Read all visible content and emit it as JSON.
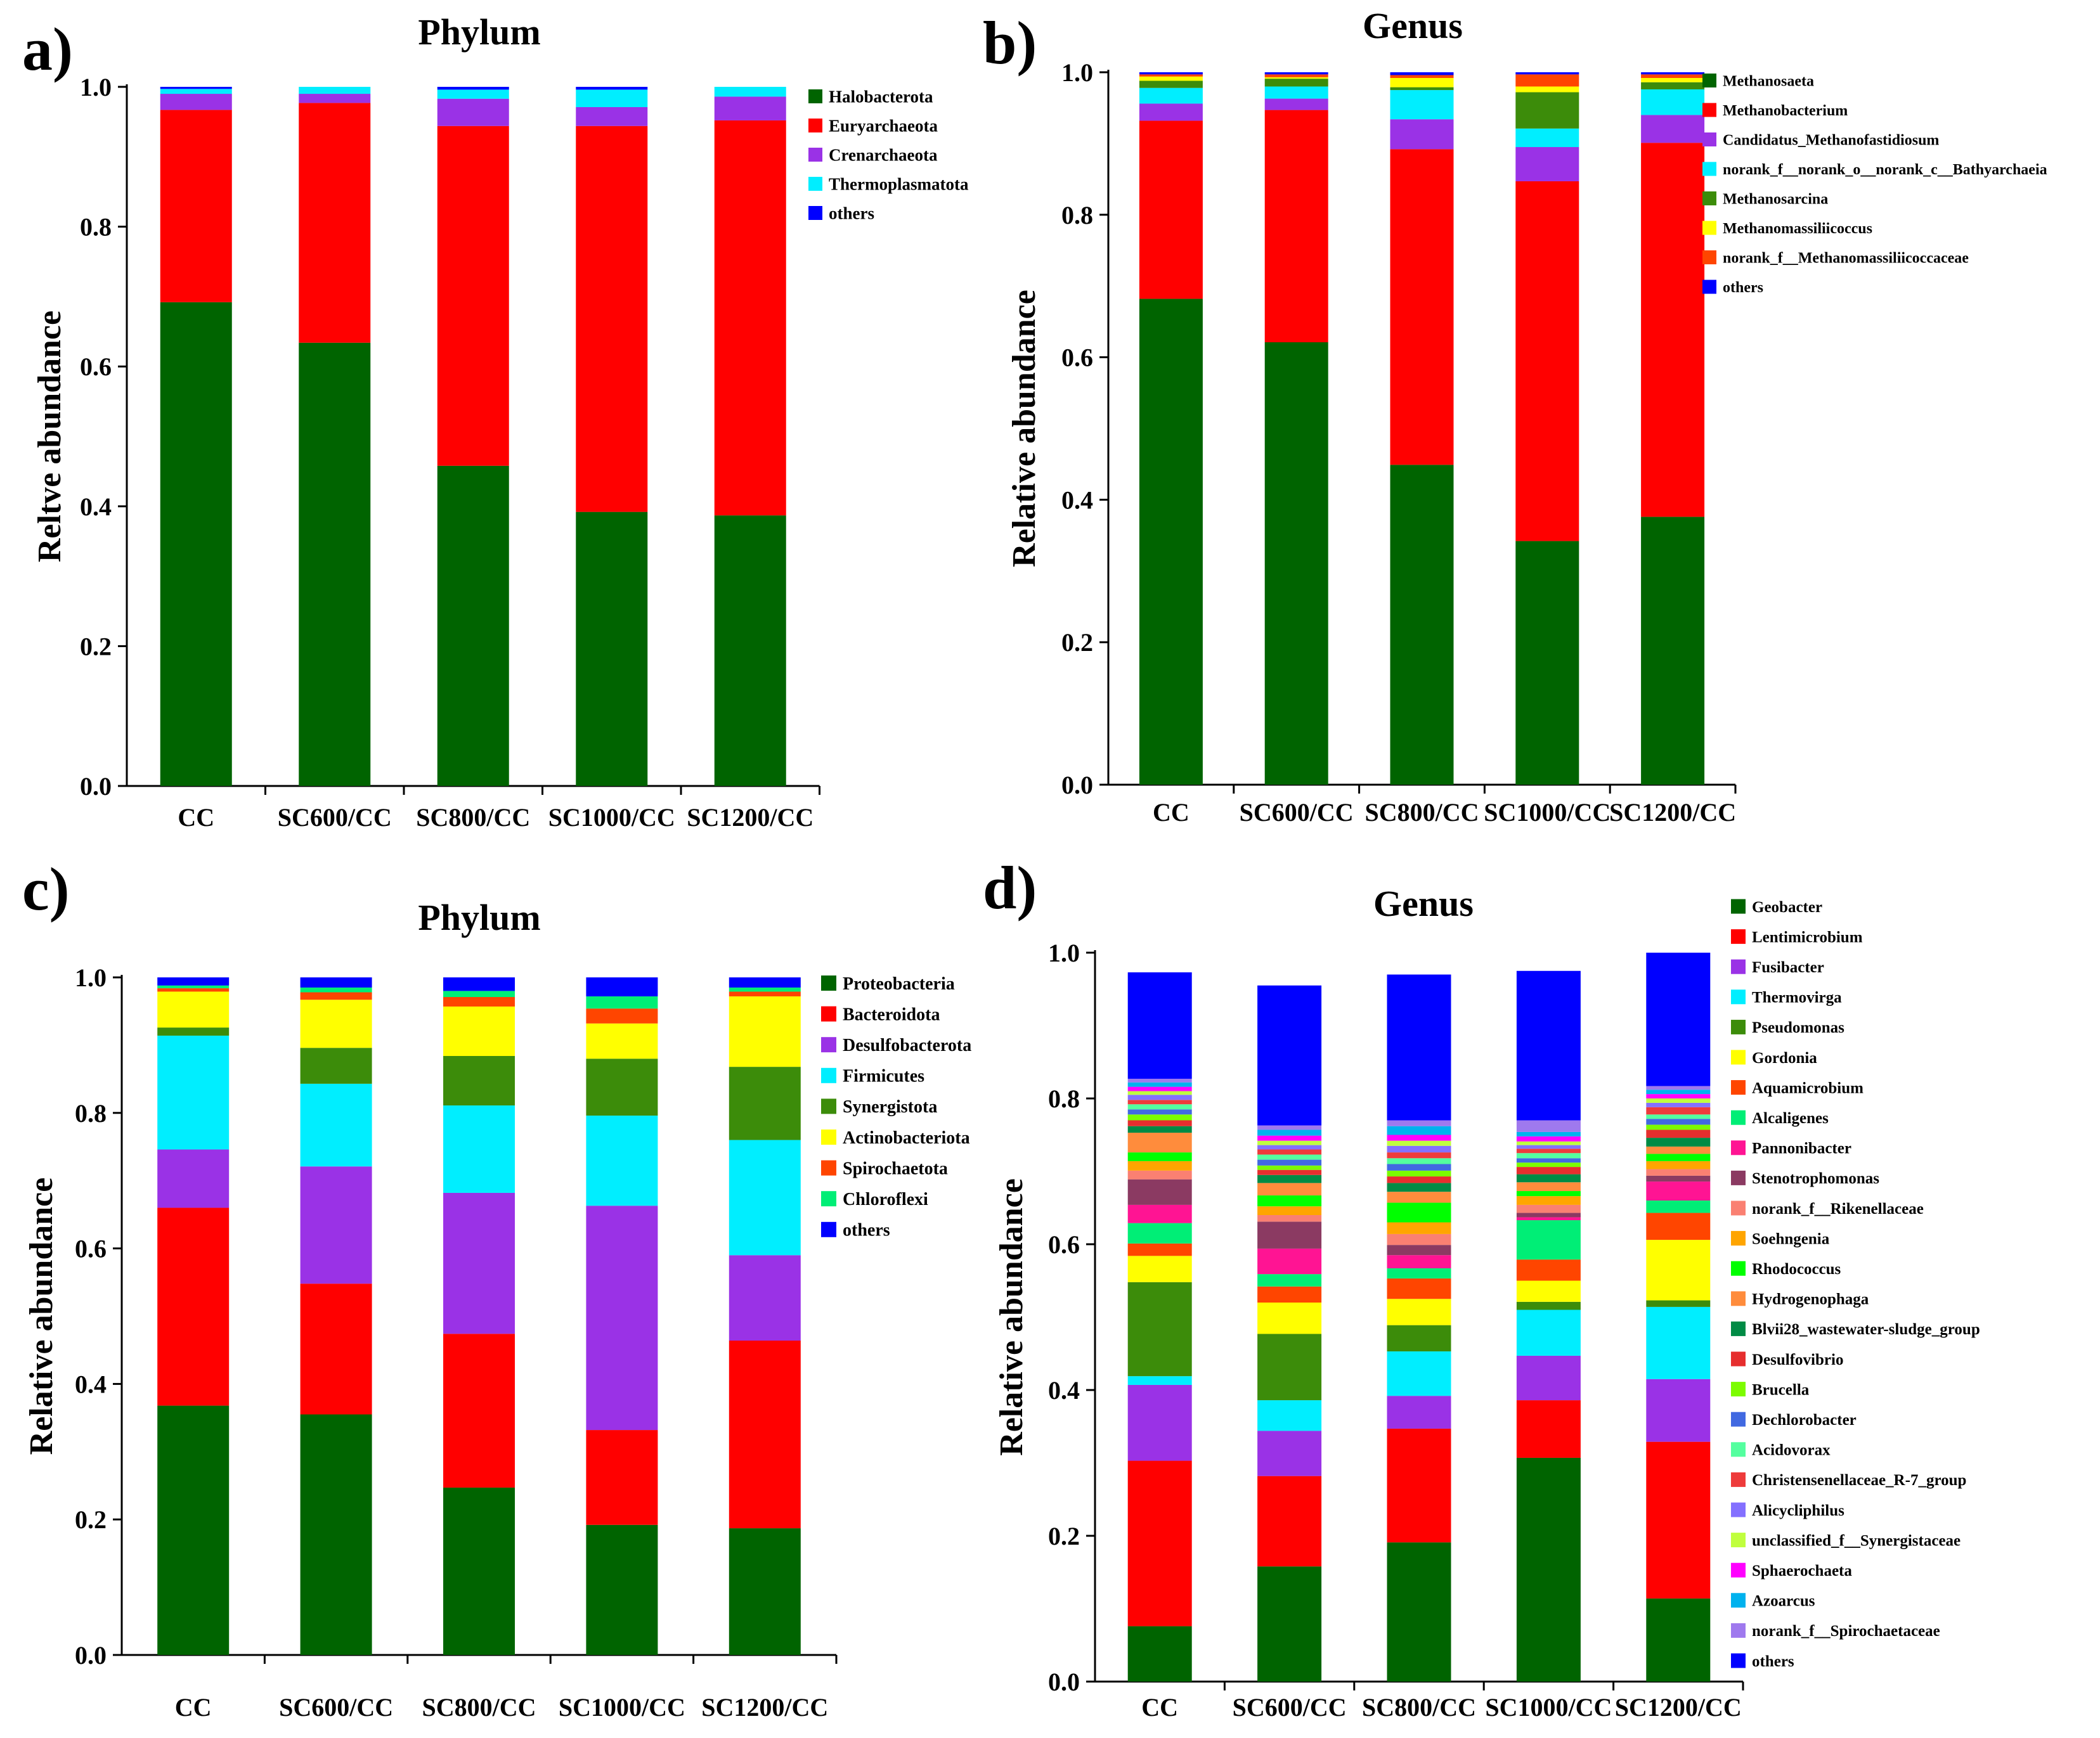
{
  "panels": [
    {
      "letter": "a)",
      "title": "Phylum"
    },
    {
      "letter": "b)",
      "title": "Genus"
    },
    {
      "letter": "c)",
      "title": "Phylum"
    },
    {
      "letter": "d)",
      "title": "Genus"
    }
  ],
  "chart_data": [
    {
      "type": "bar",
      "stacked": true,
      "title": "Phylum",
      "ylabel": "Reltve abundance",
      "xlabel": "",
      "ylim": [
        0,
        1
      ],
      "yticks": [
        "0.0",
        "0.2",
        "0.4",
        "0.6",
        "0.8",
        "1.0"
      ],
      "legend_position": "right",
      "categories": [
        "CC",
        "SC600/CC",
        "SC800/CC",
        "SC1000/CC",
        "SC1200/CC"
      ],
      "series": [
        {
          "name": "Halobacterota",
          "color": "#006400",
          "values": [
            0.692,
            0.634,
            0.458,
            0.392,
            0.387
          ]
        },
        {
          "name": "Euryarchaeota",
          "color": "#FF0000",
          "values": [
            0.275,
            0.343,
            0.486,
            0.552,
            0.565
          ]
        },
        {
          "name": "Crenarchaeota",
          "color": "#9A32E6",
          "values": [
            0.023,
            0.013,
            0.039,
            0.027,
            0.034
          ]
        },
        {
          "name": "Thermoplasmatota",
          "color": "#00EEFF",
          "values": [
            0.007,
            0.01,
            0.013,
            0.025,
            0.014
          ]
        },
        {
          "name": "others",
          "color": "#0000FF",
          "values": [
            0.003,
            0.0,
            0.004,
            0.004,
            0.0
          ]
        }
      ]
    },
    {
      "type": "bar",
      "stacked": true,
      "title": "Genus",
      "ylabel": "Relative abundance",
      "xlabel": "",
      "ylim": [
        0,
        1
      ],
      "yticks": [
        "0.0",
        "0.2",
        "0.4",
        "0.6",
        "0.8",
        "1.0"
      ],
      "legend_position": "right",
      "categories": [
        "CC",
        "SC600/CC",
        "SC800/CC",
        "SC1000/CC",
        "SC1200/CC"
      ],
      "series": [
        {
          "name": "Methanosaeta",
          "color": "#006400",
          "values": [
            0.682,
            0.621,
            0.449,
            0.342,
            0.376
          ]
        },
        {
          "name": "Methanobacterium",
          "color": "#FF0000",
          "values": [
            0.25,
            0.326,
            0.443,
            0.505,
            0.525
          ]
        },
        {
          "name": "Candidatus_Methanofastidiosum",
          "color": "#9A32E6",
          "values": [
            0.024,
            0.016,
            0.042,
            0.048,
            0.039
          ]
        },
        {
          "name": "norank_f__norank_o__norank_c__Bathyarchaeia",
          "color": "#00EEFF",
          "values": [
            0.022,
            0.017,
            0.041,
            0.026,
            0.036
          ]
        },
        {
          "name": "Methanosarcina",
          "color": "#3C8C0A",
          "values": [
            0.01,
            0.011,
            0.004,
            0.051,
            0.01
          ]
        },
        {
          "name": "Methanomassiliicoccus",
          "color": "#FFFF00",
          "values": [
            0.006,
            0.002,
            0.013,
            0.008,
            0.006
          ]
        },
        {
          "name": "norank_f__Methanomassiliicoccaceae",
          "color": "#FF4500",
          "values": [
            0.003,
            0.004,
            0.004,
            0.017,
            0.005
          ]
        },
        {
          "name": "others",
          "color": "#0000FF",
          "values": [
            0.003,
            0.003,
            0.004,
            0.003,
            0.003
          ]
        }
      ]
    },
    {
      "type": "bar",
      "stacked": true,
      "title": "Phylum",
      "ylabel": "Relative abundance",
      "xlabel": "",
      "ylim": [
        0,
        1
      ],
      "yticks": [
        "0.0",
        "0.2",
        "0.4",
        "0.6",
        "0.8",
        "1.0"
      ],
      "legend_position": "right",
      "categories": [
        "CC",
        "SC600/CC",
        "SC800/CC",
        "SC1000/CC",
        "SC1200/CC"
      ],
      "series": [
        {
          "name": "Proteobacteria",
          "color": "#006400",
          "values": [
            0.368,
            0.355,
            0.247,
            0.192,
            0.187
          ]
        },
        {
          "name": "Bacteroidota",
          "color": "#FF0000",
          "values": [
            0.292,
            0.193,
            0.227,
            0.14,
            0.277
          ]
        },
        {
          "name": "Desulfobacterota",
          "color": "#9A32E6",
          "values": [
            0.086,
            0.173,
            0.208,
            0.331,
            0.126
          ]
        },
        {
          "name": "Firmicutes",
          "color": "#00EEFF",
          "values": [
            0.168,
            0.122,
            0.129,
            0.133,
            0.17
          ]
        },
        {
          "name": "Synergistota",
          "color": "#3C8C0A",
          "values": [
            0.012,
            0.053,
            0.073,
            0.084,
            0.108
          ]
        },
        {
          "name": "Actinobacteriota",
          "color": "#FFFF00",
          "values": [
            0.053,
            0.071,
            0.073,
            0.052,
            0.104
          ]
        },
        {
          "name": "Spirochaetota",
          "color": "#FF4500",
          "values": [
            0.005,
            0.011,
            0.014,
            0.022,
            0.007
          ]
        },
        {
          "name": "Chloroflexi",
          "color": "#00EE76",
          "values": [
            0.004,
            0.007,
            0.009,
            0.018,
            0.006
          ]
        },
        {
          "name": "others",
          "color": "#0000FF",
          "values": [
            0.012,
            0.015,
            0.02,
            0.028,
            0.015
          ]
        }
      ]
    },
    {
      "type": "bar",
      "stacked": true,
      "title": "Genus",
      "ylabel": "Relative abundance",
      "xlabel": "",
      "ylim": [
        0,
        1
      ],
      "yticks": [
        "0.0",
        "0.2",
        "0.4",
        "0.6",
        "0.8",
        "1.0"
      ],
      "legend_position": "right",
      "categories": [
        "CC",
        "SC600/CC",
        "SC800/CC",
        "SC1000/CC",
        "SC1200/CC"
      ],
      "series": [
        {
          "name": "Geobacter",
          "color": "#006400",
          "values": [
            0.076,
            0.158,
            0.191,
            0.307,
            0.114
          ]
        },
        {
          "name": "Lentimicrobium",
          "color": "#FF0000",
          "values": [
            0.227,
            0.124,
            0.156,
            0.079,
            0.215
          ]
        },
        {
          "name": "Fusibacter",
          "color": "#9A32E6",
          "values": [
            0.104,
            0.062,
            0.045,
            0.061,
            0.086
          ]
        },
        {
          "name": "Thermovirga",
          "color": "#00EEFF",
          "values": [
            0.012,
            0.042,
            0.061,
            0.063,
            0.099
          ]
        },
        {
          "name": "Pseudomonas",
          "color": "#3C8C0A",
          "values": [
            0.129,
            0.091,
            0.036,
            0.011,
            0.009
          ]
        },
        {
          "name": "Gordonia",
          "color": "#FFFF00",
          "values": [
            0.036,
            0.043,
            0.036,
            0.029,
            0.083
          ]
        },
        {
          "name": "Aquamicrobium",
          "color": "#FF4500",
          "values": [
            0.017,
            0.022,
            0.028,
            0.029,
            0.037
          ]
        },
        {
          "name": "Alcaligenes",
          "color": "#00EE76",
          "values": [
            0.028,
            0.017,
            0.014,
            0.054,
            0.017
          ]
        },
        {
          "name": "Pannonibacter",
          "color": "#FF1493",
          "values": [
            0.025,
            0.035,
            0.018,
            0.004,
            0.026
          ]
        },
        {
          "name": "Stenotrophomonas",
          "color": "#8B3A62",
          "values": [
            0.035,
            0.037,
            0.014,
            0.006,
            0.008
          ]
        },
        {
          "name": "norank_f__Rikenellaceae",
          "color": "#FA8072",
          "values": [
            0.012,
            0.009,
            0.015,
            0.011,
            0.009
          ]
        },
        {
          "name": "Soehngenia",
          "color": "#FFA500",
          "values": [
            0.013,
            0.012,
            0.016,
            0.012,
            0.011
          ]
        },
        {
          "name": "Rhodococcus",
          "color": "#00FF00",
          "values": [
            0.012,
            0.015,
            0.027,
            0.007,
            0.01
          ]
        },
        {
          "name": "Hydrogenophaga",
          "color": "#FF8C3C",
          "values": [
            0.027,
            0.017,
            0.015,
            0.012,
            0.01
          ]
        },
        {
          "name": "Blvii28_wastewater-sludge_group",
          "color": "#008B45",
          "values": [
            0.009,
            0.011,
            0.012,
            0.011,
            0.012
          ]
        },
        {
          "name": "Desulfovibrio",
          "color": "#E62E2E",
          "values": [
            0.008,
            0.007,
            0.009,
            0.01,
            0.011
          ]
        },
        {
          "name": "Brucella",
          "color": "#7CFC00",
          "values": [
            0.008,
            0.006,
            0.008,
            0.006,
            0.007
          ]
        },
        {
          "name": "Dechlorobacter",
          "color": "#4169E1",
          "values": [
            0.007,
            0.008,
            0.009,
            0.006,
            0.008
          ]
        },
        {
          "name": "Acidovorax",
          "color": "#54FF9F",
          "values": [
            0.007,
            0.007,
            0.008,
            0.007,
            0.006
          ]
        },
        {
          "name": "Christensenellaceae_R-7_group",
          "color": "#EE3B3B",
          "values": [
            0.006,
            0.007,
            0.008,
            0.006,
            0.01
          ]
        },
        {
          "name": "Alicycliphilus",
          "color": "#8470FF",
          "values": [
            0.007,
            0.006,
            0.009,
            0.005,
            0.006
          ]
        },
        {
          "name": "unclassified_f__Synergistaceae",
          "color": "#C0FF3E",
          "values": [
            0.005,
            0.006,
            0.007,
            0.005,
            0.006
          ]
        },
        {
          "name": "Sphaerochaeta",
          "color": "#FF00FF",
          "values": [
            0.006,
            0.007,
            0.008,
            0.007,
            0.006
          ]
        },
        {
          "name": "Azoarcus",
          "color": "#00B2EE",
          "values": [
            0.006,
            0.008,
            0.012,
            0.006,
            0.006
          ]
        },
        {
          "name": "norank_f__Spirochaetaceae",
          "color": "#9F79EE",
          "values": [
            0.005,
            0.006,
            0.008,
            0.016,
            0.005
          ]
        },
        {
          "name": "others",
          "color": "#0000FF",
          "values": [
            0.146,
            0.192,
            0.2,
            0.205,
            0.183
          ]
        }
      ]
    }
  ]
}
